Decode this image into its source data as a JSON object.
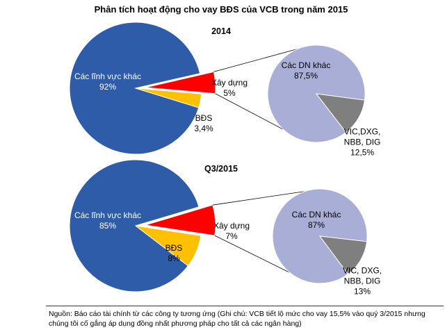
{
  "title": "Phân tích hoạt động cho vay BĐS của VCB trong năm 2015",
  "source": "Nguồn: Báo cáo tài chính từ các công ty tương ứng (Ghi chú: VCB tiết lộ mức cho vay 15,5% vào quý 3/2015 nhưng chúng tôi cố gắng áp dụng đồng nhất phương pháp cho tất cả các ngân hàng)",
  "chart_data": [
    {
      "type": "pie-of-pie",
      "title": "2014",
      "categories": [
        "Các lĩnh vực khác",
        "Xây dựng",
        "BĐS"
      ],
      "values": [
        92,
        5,
        3.4
      ],
      "value_labels": [
        "92%",
        "5%",
        "3,4%"
      ],
      "colors": [
        "#2e5ca8",
        "#ff0000",
        "#ffc000"
      ],
      "secondary": {
        "categories": [
          "Các DN khác",
          "VIC,DXG, NBB, DIG"
        ],
        "values": [
          87.5,
          12.5
        ],
        "value_labels": [
          "87,5%",
          "12,5%"
        ],
        "colors": [
          "#a9aed6",
          "#7f7f7f"
        ]
      }
    },
    {
      "type": "pie-of-pie",
      "title": "Q3/2015",
      "categories": [
        "Các lĩnh vực khác",
        "Xây dựng",
        "BĐS"
      ],
      "values": [
        85,
        7,
        8
      ],
      "value_labels": [
        "85%",
        "7%",
        "8%"
      ],
      "colors": [
        "#2e5ca8",
        "#ff0000",
        "#ffc000"
      ],
      "secondary": {
        "categories": [
          "Các DN khác",
          "VIC, DXG, NBB, DIG"
        ],
        "values": [
          87,
          13
        ],
        "value_labels": [
          "87%",
          "13%"
        ],
        "colors": [
          "#a9aed6",
          "#7f7f7f"
        ]
      }
    }
  ]
}
